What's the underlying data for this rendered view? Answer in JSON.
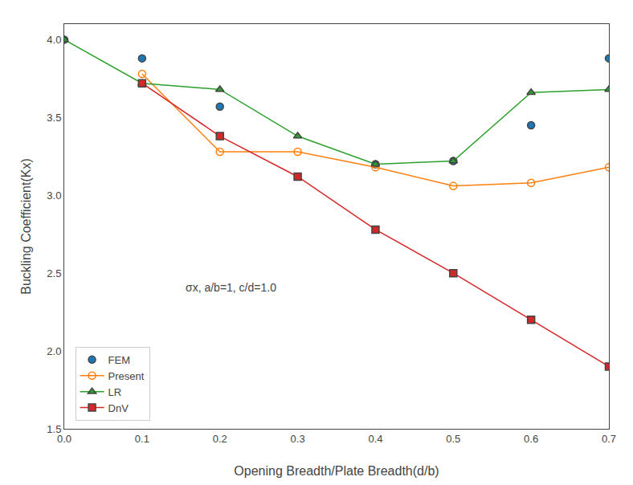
{
  "chart_data": {
    "type": "line",
    "xlabel": "Opening Breadth/Plate Breadth(d/b)",
    "ylabel": "Buckling Coefficient(Kx)",
    "xlim": [
      0.0,
      0.7
    ],
    "ylim": [
      1.5,
      4.1
    ],
    "xticks": [
      {
        "value": 0.0,
        "label": "0.0"
      },
      0.1,
      0.2,
      0.3,
      0.4,
      0.5,
      0.6,
      0.7
    ],
    "yticks": [
      1.5,
      {
        "value": 2.0,
        "label": "2.0"
      },
      2.5,
      {
        "value": 3.0,
        "label": "3.0"
      },
      3.5,
      {
        "value": 4.0,
        "label": "4.0"
      }
    ],
    "annotation": "σx, a/b=1, c/d=1.0",
    "grid": false,
    "legend": "lower left",
    "series": [
      {
        "name": "FEM",
        "marker": "circle",
        "line_style": "none",
        "x": [
          0.0,
          0.1,
          0.2,
          0.4,
          0.5,
          0.6,
          0.7
        ],
        "values": [
          4.0,
          3.88,
          3.57,
          3.2,
          3.22,
          3.45,
          3.88
        ]
      },
      {
        "name": "Present",
        "marker": "circle-open",
        "line_style": "solid",
        "x": [
          0.1,
          0.2,
          0.3,
          0.4,
          0.5,
          0.6,
          0.7
        ],
        "values": [
          3.78,
          3.28,
          3.28,
          3.18,
          3.06,
          3.08,
          3.18
        ]
      },
      {
        "name": "LR",
        "marker": "triangle-up",
        "line_style": "solid",
        "x": [
          0.0,
          0.1,
          0.2,
          0.3,
          0.4,
          0.5,
          0.6,
          0.7
        ],
        "values": [
          4.0,
          3.72,
          3.68,
          3.38,
          3.2,
          3.22,
          3.66,
          3.68
        ]
      },
      {
        "name": "DnV",
        "marker": "square",
        "line_style": "solid",
        "x": [
          0.1,
          0.2,
          0.3,
          0.4,
          0.5,
          0.6,
          0.7
        ],
        "values": [
          3.72,
          3.38,
          3.12,
          2.78,
          2.5,
          2.2,
          1.9
        ]
      }
    ]
  }
}
